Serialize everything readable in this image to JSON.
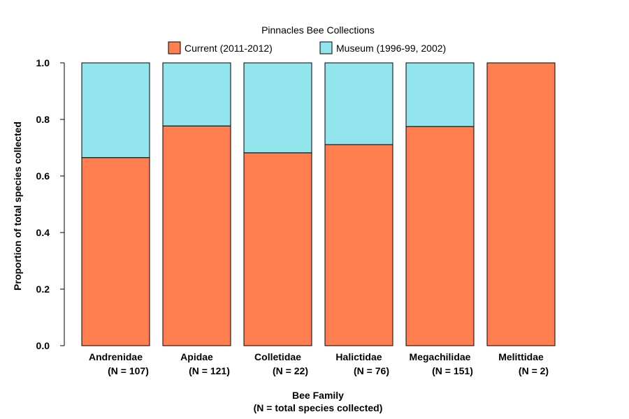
{
  "chart_data": {
    "type": "bar",
    "stacked": true,
    "title": "Pinnacles Bee Collections",
    "xlabel": [
      "Bee Family",
      "(N = total species collected)"
    ],
    "ylabel": "Proportion of total species collected",
    "ylim": [
      0,
      1.0
    ],
    "yticks": [
      "0.0",
      "0.2",
      "0.4",
      "0.6",
      "0.8",
      "1.0"
    ],
    "yticks_values": [
      0,
      0.2,
      0.4,
      0.6,
      0.8,
      1.0
    ],
    "grid": false,
    "legend_position": "top",
    "categories": [
      {
        "name": "Andrenidae",
        "n_label": "(N = 107)"
      },
      {
        "name": "Apidae",
        "n_label": "(N = 121)"
      },
      {
        "name": "Colletidae",
        "n_label": "(N = 22)"
      },
      {
        "name": "Halictidae",
        "n_label": "(N = 76)"
      },
      {
        "name": "Megachilidae",
        "n_label": "(N = 151)"
      },
      {
        "name": "Melittidae",
        "n_label": "(N = 2)"
      }
    ],
    "series": [
      {
        "name": "Current (2011-2012)",
        "color": "#FF7F50",
        "values": [
          0.665,
          0.777,
          0.682,
          0.711,
          0.775,
          1.0
        ]
      },
      {
        "name": "Museum (1996-99, 2002)",
        "color": "#92E5ED",
        "values": [
          0.335,
          0.223,
          0.318,
          0.289,
          0.225,
          0.0
        ]
      }
    ]
  }
}
